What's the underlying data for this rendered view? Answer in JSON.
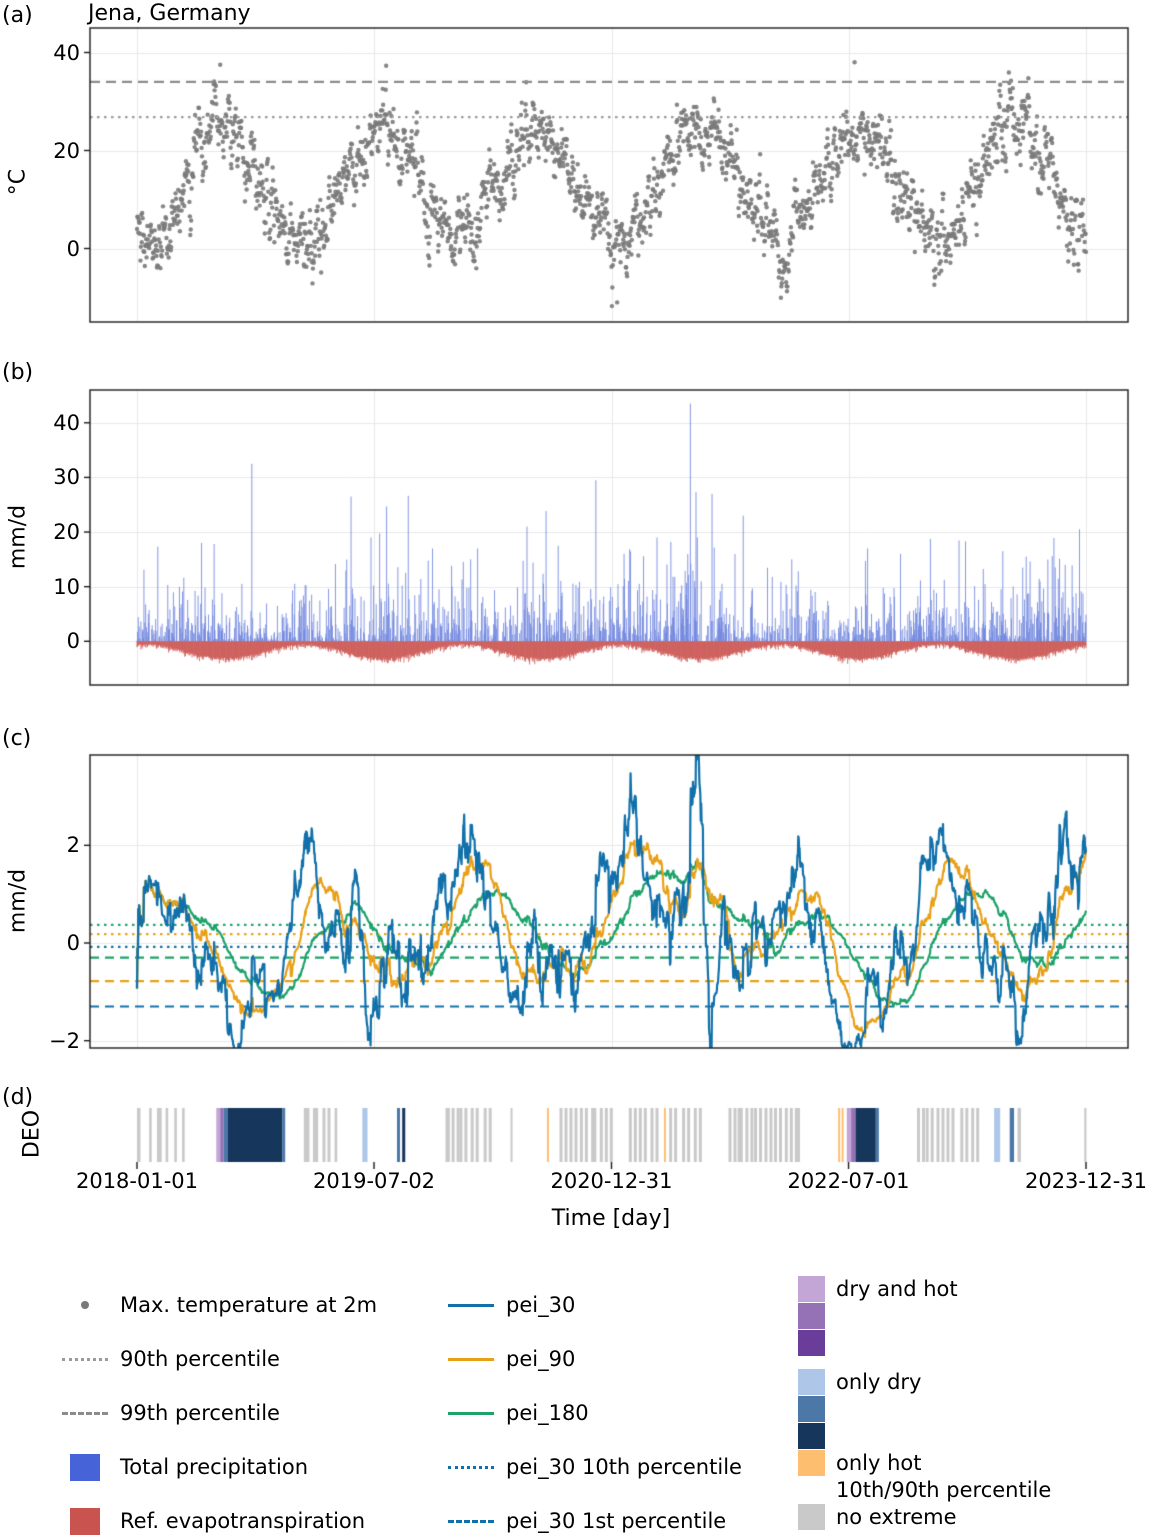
{
  "figure": {
    "title": "Jena, Germany",
    "panel_labels": [
      "(a)",
      "(b)",
      "(c)",
      "(d)"
    ]
  },
  "axes": {
    "x": {
      "label": "Time [day]",
      "range_days": 2191,
      "tick_days": [
        0,
        547,
        1095,
        1642,
        2190
      ],
      "tick_labels": [
        "2018-01-01",
        "2019-07-02",
        "2020-12-31",
        "2022-07-01",
        "2023-12-31"
      ]
    },
    "a": {
      "ylabel": "°C"
    },
    "b": {
      "ylabel": "mm/d"
    },
    "c": {
      "ylabel": "mm/d"
    },
    "d": {
      "ylabel": "DEO"
    }
  },
  "chart_data": [
    {
      "panel": "a",
      "type": "scatter",
      "title": "Jena, Germany",
      "series_name": "Max. temperature at 2m",
      "ylabel": "°C",
      "ylim": [
        -15,
        45
      ],
      "yticks": [
        0,
        20,
        40
      ],
      "ytick_labels": [
        "0",
        "20",
        "40"
      ],
      "point_color": "#7a7a7a",
      "seasonal": {
        "mean": 13,
        "amplitude": 11.5,
        "coldest_doy": 20
      },
      "noise": {
        "sd": 2.9,
        "ar1": 0.72
      },
      "percentile_lines": {
        "p90": {
          "label": "90th percentile",
          "value": 26.8,
          "style": "dotted",
          "color": "#9a9a9a"
        },
        "p99": {
          "label": "99th percentile",
          "value": 34.0,
          "style": "dashed",
          "color": "#8c8c8c"
        }
      },
      "observed_range_c": [
        -11,
        38
      ],
      "notable_extremes": [
        [
          192,
          37.5
        ],
        [
          1108,
          -11
        ],
        [
          1656,
          38
        ]
      ]
    },
    {
      "panel": "b",
      "type": "bar",
      "ylabel": "mm/d",
      "ylim": [
        -8,
        46
      ],
      "yticks": [
        0,
        10,
        20,
        30,
        40
      ],
      "ytick_labels": [
        "0",
        "10",
        "20",
        "30",
        "40"
      ],
      "series": [
        {
          "name": "Total precipitation",
          "sign": "positive",
          "color": "#6e85de"
        },
        {
          "name": "Ref. evapotranspiration",
          "sign": "negative",
          "color": "#cd5c58"
        }
      ],
      "precip": {
        "dry_prob": 0.45,
        "mean_wet_mm": 3.6,
        "max_observed": 43.5
      },
      "evap": {
        "winter_rate": 0.4,
        "summer_extra": 2.6,
        "max_observed": -5
      },
      "wetness_modulation": [
        [
          150,
          330,
          0.5
        ],
        [
          500,
          560,
          0.65
        ],
        [
          810,
          880,
          0.55
        ],
        [
          1230,
          1335,
          1.6
        ],
        [
          1600,
          1715,
          0.42
        ],
        [
          1950,
          2030,
          0.75
        ],
        [
          2100,
          2191,
          1.6
        ]
      ],
      "major_events": [
        [
          149,
          18
        ],
        [
          265,
          32.5
        ],
        [
          494,
          26.5
        ],
        [
          540,
          19
        ],
        [
          770,
          15
        ],
        [
          900,
          21
        ],
        [
          972,
          17.5
        ],
        [
          1124,
          16
        ],
        [
          1200,
          19
        ],
        [
          1277,
          43.5
        ],
        [
          1327,
          27
        ],
        [
          1399,
          23
        ],
        [
          1511,
          15
        ],
        [
          1686,
          17
        ],
        [
          1762,
          16
        ],
        [
          1998,
          16.5
        ],
        [
          2052,
          15.5
        ],
        [
          2142,
          14
        ],
        [
          2175,
          20.5
        ]
      ]
    },
    {
      "panel": "c",
      "type": "line",
      "ylabel": "mm/d",
      "ylim": [
        -2.15,
        3.85
      ],
      "yticks": [
        -2,
        0,
        2
      ],
      "ytick_labels": [
        "−2",
        "0",
        "2"
      ],
      "derivation": "rolling mean of daily precipitation minus reference evapotranspiration",
      "series": [
        {
          "name": "pei_30",
          "window_days": 30,
          "color": "#1170aa"
        },
        {
          "name": "pei_90",
          "window_days": 90,
          "color": "#e8a018"
        },
        {
          "name": "pei_180",
          "window_days": 180,
          "color": "#1ea26b"
        }
      ],
      "threshold_lines": [
        {
          "name": "pei_180 10th percentile",
          "value": 0.37,
          "style": "dotted",
          "color": "#1ea26b"
        },
        {
          "name": "pei_90 10th percentile",
          "value": 0.18,
          "style": "dotted",
          "color": "#e8a018"
        },
        {
          "name": "pei_30 10th percentile",
          "value": -0.08,
          "style": "dotted",
          "color": "#1170aa"
        },
        {
          "name": "pei_180 1st percentile",
          "value": -0.3,
          "style": "dashed",
          "color": "#1ea26b"
        },
        {
          "name": "pei_90 1st percentile",
          "value": -0.78,
          "style": "dashed",
          "color": "#e8a018"
        },
        {
          "name": "pei_30 1st percentile",
          "value": -1.3,
          "style": "dashed",
          "color": "#1170aa"
        }
      ]
    },
    {
      "panel": "d",
      "type": "event-strip",
      "ylabel": "DEO",
      "palette": {
        "dh1": "#c3a5d6",
        "dh2": "#9572b5",
        "dh3": "#6a3d9a",
        "d1": "#aec7e8",
        "d2": "#4c78a8",
        "d3": "#16365c",
        "h1": "#fdbf6f",
        "ne": "#c9c9c9"
      },
      "category_names": {
        "dh": "dry and hot",
        "d": "only dry",
        "h": "only hot",
        "threshold_note": "10th/90th percentile",
        "ne": "no extreme"
      },
      "segments": [
        [
          0,
          8,
          "ne"
        ],
        [
          28,
          34,
          "ne"
        ],
        [
          46,
          57,
          "ne"
        ],
        [
          66,
          72,
          "ne"
        ],
        [
          86,
          92,
          "ne"
        ],
        [
          104,
          110,
          "ne"
        ],
        [
          183,
          192,
          "dh1"
        ],
        [
          192,
          200,
          "dh2"
        ],
        [
          200,
          210,
          "d2"
        ],
        [
          210,
          335,
          "d3"
        ],
        [
          335,
          342,
          "d2"
        ],
        [
          385,
          398,
          "ne"
        ],
        [
          406,
          418,
          "ne"
        ],
        [
          428,
          446,
          "ne"
        ],
        [
          456,
          462,
          "ne"
        ],
        [
          520,
          532,
          "d1"
        ],
        [
          600,
          607,
          "d2"
        ],
        [
          612,
          619,
          "d3"
        ],
        [
          712,
          722,
          "ne"
        ],
        [
          726,
          740,
          "ne"
        ],
        [
          744,
          762,
          "ne"
        ],
        [
          770,
          788,
          "ne"
        ],
        [
          800,
          815,
          "ne"
        ],
        [
          862,
          866,
          "ne"
        ],
        [
          946,
          950,
          "h1"
        ],
        [
          975,
          990,
          "ne"
        ],
        [
          998,
          1015,
          "ne"
        ],
        [
          1022,
          1040,
          "ne"
        ],
        [
          1048,
          1060,
          "ne"
        ],
        [
          1068,
          1092,
          "ne"
        ],
        [
          1135,
          1150,
          "ne"
        ],
        [
          1158,
          1175,
          "ne"
        ],
        [
          1185,
          1200,
          "ne"
        ],
        [
          1216,
          1220,
          "h1"
        ],
        [
          1228,
          1250,
          "ne"
        ],
        [
          1258,
          1275,
          "ne"
        ],
        [
          1285,
          1300,
          "ne"
        ],
        [
          1365,
          1380,
          "ne"
        ],
        [
          1386,
          1398,
          "ne"
        ],
        [
          1404,
          1418,
          "ne"
        ],
        [
          1424,
          1440,
          "ne"
        ],
        [
          1448,
          1462,
          "ne"
        ],
        [
          1470,
          1485,
          "ne"
        ],
        [
          1495,
          1510,
          "ne"
        ],
        [
          1518,
          1530,
          "ne"
        ],
        [
          1618,
          1622,
          "h1"
        ],
        [
          1626,
          1629,
          "h1"
        ],
        [
          1638,
          1648,
          "dh1"
        ],
        [
          1648,
          1658,
          "dh2"
        ],
        [
          1658,
          1705,
          "d3"
        ],
        [
          1705,
          1712,
          "d2"
        ],
        [
          1800,
          1815,
          "ne"
        ],
        [
          1820,
          1838,
          "ne"
        ],
        [
          1845,
          1860,
          "ne"
        ],
        [
          1868,
          1890,
          "ne"
        ],
        [
          1900,
          1915,
          "ne"
        ],
        [
          1925,
          1940,
          "ne"
        ],
        [
          1978,
          1992,
          "d1"
        ],
        [
          2014,
          2024,
          "d2"
        ],
        [
          2032,
          2040,
          "ne"
        ],
        [
          2186,
          2191,
          "ne"
        ]
      ]
    }
  ],
  "legend": {
    "col1": [
      {
        "marker": "dot",
        "color": "#7a7a7a",
        "label": "Max. temperature at 2m"
      },
      {
        "marker": "dotted-line",
        "color": "#9a9a9a",
        "label": "90th percentile"
      },
      {
        "marker": "dashed-line",
        "color": "#8c8c8c",
        "label": "99th percentile"
      },
      {
        "marker": "rect",
        "color": "#4663d8",
        "label": "Total precipitation"
      },
      {
        "marker": "rect",
        "color": "#c8534f",
        "label": "Ref. evapotranspiration"
      }
    ],
    "col2": [
      {
        "marker": "line",
        "color": "#1170aa",
        "label": "pei_30"
      },
      {
        "marker": "line",
        "color": "#e8a018",
        "label": "pei_90"
      },
      {
        "marker": "line",
        "color": "#1ea26b",
        "label": "pei_180"
      },
      {
        "marker": "dotted-line",
        "color": "#1170aa",
        "label": "pei_30 10th percentile"
      },
      {
        "marker": "dashed-line",
        "color": "#1170aa",
        "label": "pei_30 1st percentile"
      }
    ],
    "col3": {
      "swatches": [
        {
          "color": "#c3a5d6",
          "label": "dry and hot",
          "gap_before": false
        },
        {
          "color": "#9572b5",
          "label": "",
          "gap_before": false
        },
        {
          "color": "#6a3d9a",
          "label": "",
          "gap_before": false
        },
        {
          "color": "#aec7e8",
          "label": "only dry",
          "gap_before": true
        },
        {
          "color": "#4c78a8",
          "label": "",
          "gap_before": false
        },
        {
          "color": "#16365c",
          "label": "",
          "gap_before": false
        },
        {
          "color": "#fdbf6f",
          "label": "only hot",
          "gap_before": false
        },
        {
          "color": "#ffffff",
          "label": "10th/90th percentile",
          "gap_before": false
        },
        {
          "color": "#c9c9c9",
          "label": "no extreme",
          "gap_before": false
        }
      ]
    }
  }
}
